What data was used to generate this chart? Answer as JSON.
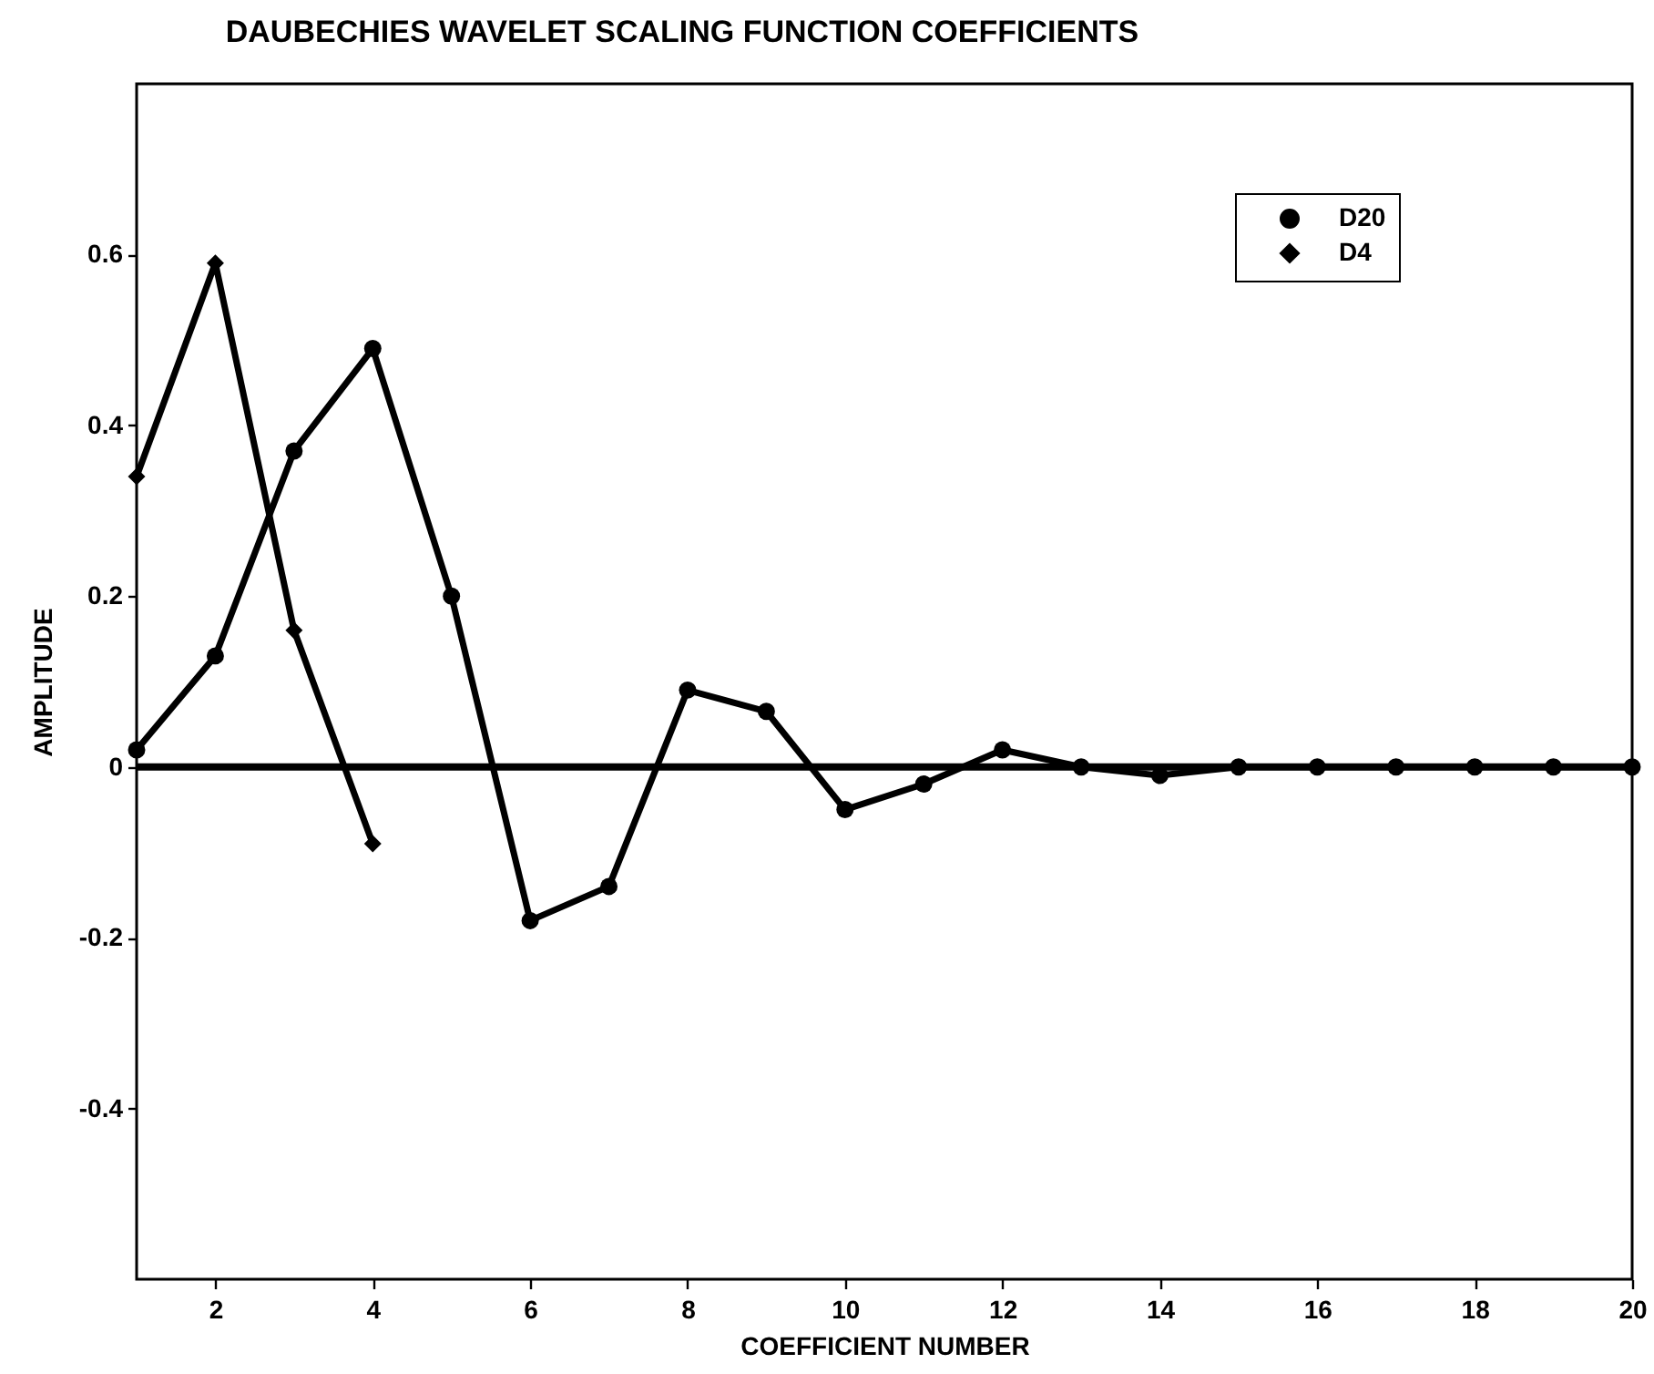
{
  "chart_data": {
    "type": "line",
    "title": "DAUBECHIES WAVELET SCALING FUNCTION COEFFICIENTS",
    "xlabel": "COEFFICIENT NUMBER",
    "ylabel": "AMPLITUDE",
    "xlim": [
      1,
      20
    ],
    "xticks": [
      2,
      4,
      6,
      8,
      10,
      12,
      14,
      16,
      18,
      20
    ],
    "ylim": [
      -0.6,
      0.8
    ],
    "yticks": [
      -0.4,
      -0.2,
      0,
      0.2,
      0.4,
      0.6
    ],
    "grid": false,
    "legend": "top right",
    "line_style": "solid",
    "ref_lines": [
      {
        "axis": "y",
        "value": 0,
        "color": "#000000"
      }
    ],
    "series": [
      {
        "name": "D20",
        "color": "#000000",
        "marker": "circle",
        "x": [
          1,
          2,
          3,
          4,
          5,
          6,
          7,
          8,
          9,
          10,
          11,
          12,
          13,
          14,
          15,
          16,
          17,
          18,
          19,
          20
        ],
        "values": [
          0.02,
          0.13,
          0.37,
          0.49,
          0.2,
          -0.18,
          -0.14,
          0.09,
          0.065,
          -0.05,
          -0.02,
          0.02,
          0,
          -0.01,
          0,
          0,
          0,
          0,
          0,
          0
        ]
      },
      {
        "name": "D4",
        "color": "#000000",
        "marker": "diamond",
        "x": [
          1,
          2,
          3,
          4
        ],
        "values": [
          0.34,
          0.59,
          0.16,
          -0.09
        ]
      }
    ]
  }
}
